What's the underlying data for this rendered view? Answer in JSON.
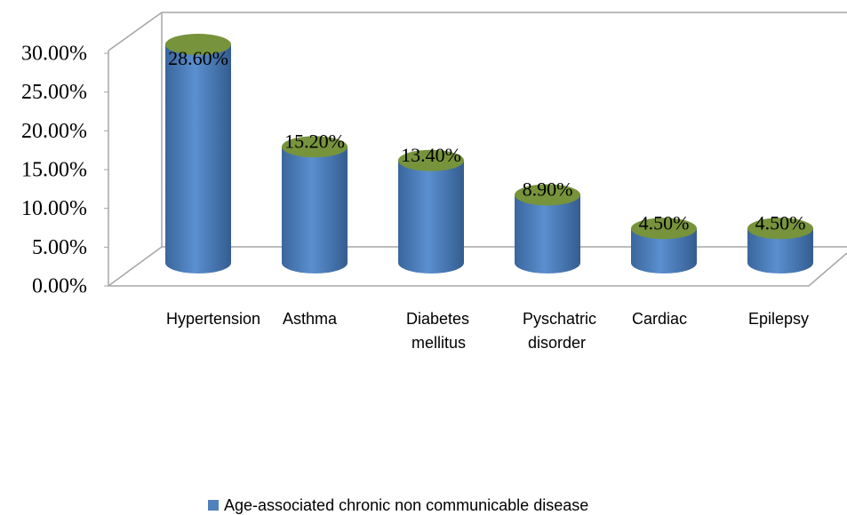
{
  "chart_data": {
    "type": "bar",
    "categories": [
      "Hypertension",
      "Asthma",
      "Diabetes mellitus",
      "Pyschatric disorder",
      "Cardiac",
      "Epilepsy"
    ],
    "series": [
      {
        "name": "Age-associated chronic non communicable disease",
        "color": "#4f81bd",
        "top_color": "#77933c",
        "values": [
          28.6,
          15.2,
          13.4,
          8.9,
          4.5,
          4.5
        ],
        "value_labels": [
          "28.60%",
          "15.20%",
          "13.40%",
          "8.90%",
          "4.50%",
          "4.50%"
        ]
      }
    ],
    "ylim": [
      0,
      30
    ],
    "yticks": [
      {
        "value": 0,
        "label": "0.00%"
      },
      {
        "value": 5,
        "label": "5.00%"
      },
      {
        "value": 10,
        "label": "10.00%"
      },
      {
        "value": 15,
        "label": "15.00%"
      },
      {
        "value": 20,
        "label": "20.00%"
      },
      {
        "value": 25,
        "label": "25.00%"
      },
      {
        "value": 30,
        "label": "30.00%"
      }
    ],
    "legend": "bottom"
  }
}
